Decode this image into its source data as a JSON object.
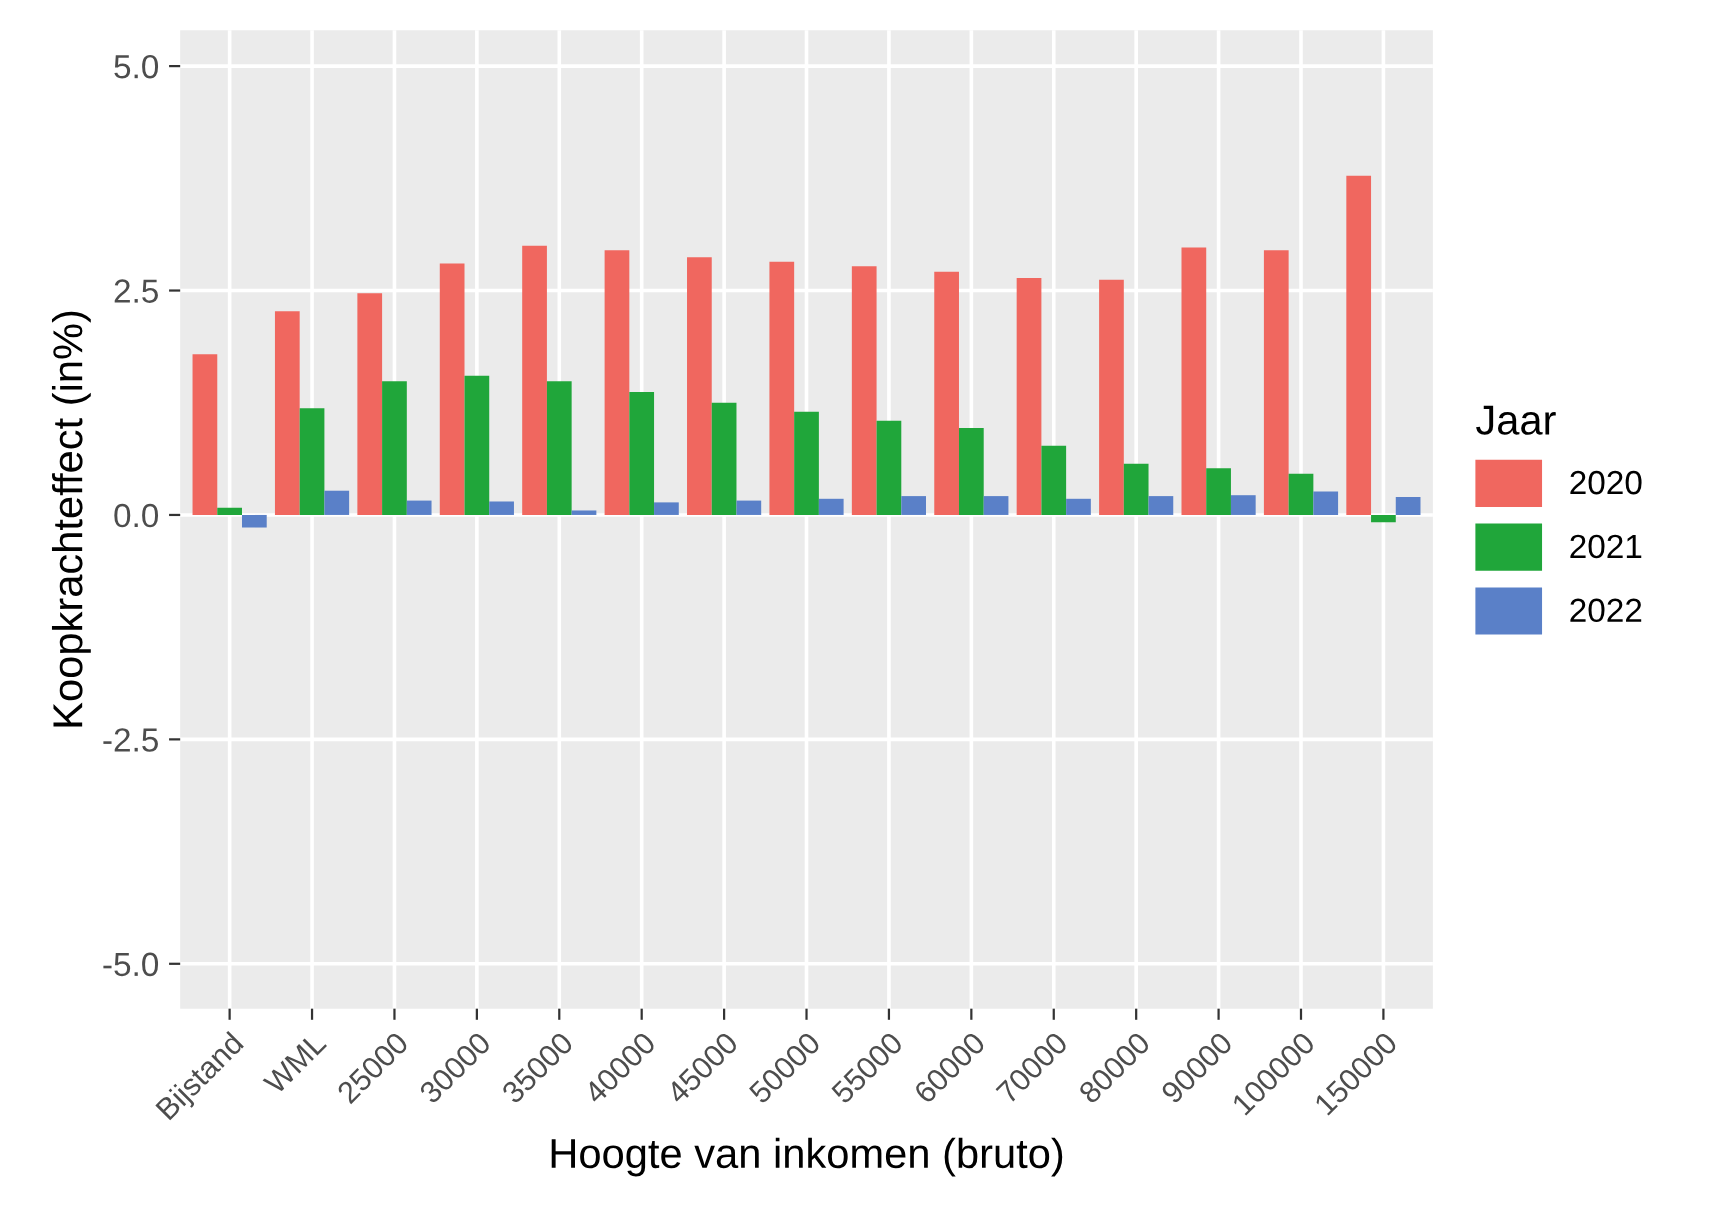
{
  "chart_data": {
    "type": "bar",
    "xlabel": "Hoogte van inkomen (bruto)",
    "ylabel": "Koopkrachteffect (in%)",
    "legend_title": "Jaar",
    "legend": "right",
    "grid": true,
    "categories": [
      "Bijstand",
      "WML",
      "25000",
      "30000",
      "35000",
      "40000",
      "45000",
      "50000",
      "55000",
      "60000",
      "70000",
      "80000",
      "90000",
      "100000",
      "150000"
    ],
    "series": [
      {
        "name": "2020",
        "color": "#f0675f",
        "values": [
          1.79,
          2.27,
          2.47,
          2.8,
          3.0,
          2.95,
          2.87,
          2.82,
          2.77,
          2.71,
          2.64,
          2.62,
          2.98,
          2.95,
          3.78
        ]
      },
      {
        "name": "2021",
        "color": "#20a63a",
        "values": [
          0.08,
          1.19,
          1.49,
          1.55,
          1.49,
          1.37,
          1.25,
          1.15,
          1.05,
          0.97,
          0.77,
          0.57,
          0.52,
          0.46,
          -0.08
        ]
      },
      {
        "name": "2022",
        "color": "#5a80c8",
        "values": [
          -0.14,
          0.27,
          0.16,
          0.15,
          0.05,
          0.14,
          0.16,
          0.18,
          0.21,
          0.21,
          0.18,
          0.21,
          0.22,
          0.26,
          0.2
        ]
      }
    ],
    "ylim": [
      -5.5,
      5.4
    ],
    "yticks": [
      {
        "value": -5,
        "label": "-5.0"
      },
      {
        "value": -2.5,
        "label": "-2.5"
      },
      {
        "value": 0,
        "label": "0.0"
      },
      {
        "value": 2.5,
        "label": "2.5"
      },
      {
        "value": 5,
        "label": "5.0"
      }
    ]
  }
}
